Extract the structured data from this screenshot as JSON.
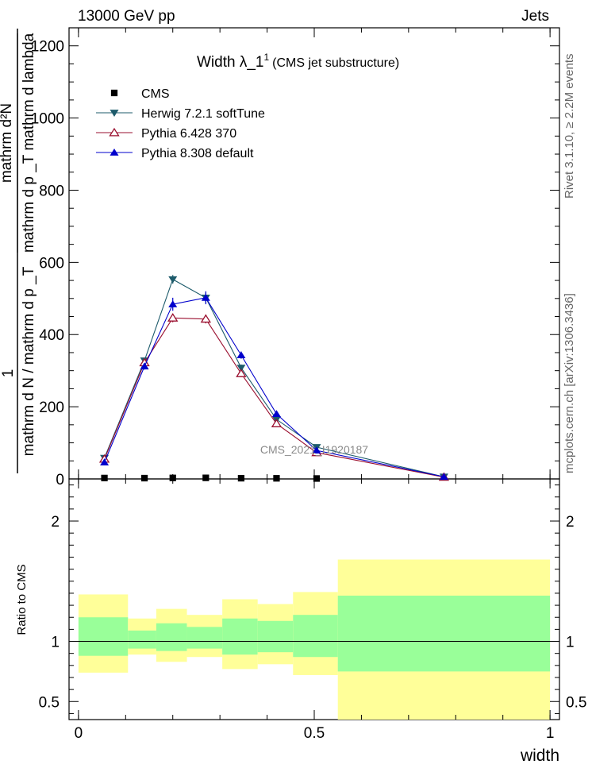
{
  "header": {
    "left": "13000 GeV pp",
    "right": "Jets"
  },
  "side": {
    "rivet": "Rivet 3.1.10, ≥ 2.2M events",
    "mcplots": "mcplots.cern.ch [arXiv:1306.3436]"
  },
  "watermark": "CMS_2021_I1920187",
  "chart_data": {
    "type": "line",
    "title": "Width λ_1",
    "title_sup": "1",
    "subtitle": "(CMS jet substructure)",
    "xlabel": "width",
    "ylabel_top": "1",
    "ylabel_fraction_top": "mathrm d²N",
    "ylabel_fraction_mid": "mathrm d p _T mathrm d lambda",
    "ylabel_bottom": "mathrm d N / mathrm d p _T",
    "ratio_ylabel": "Ratio to CMS",
    "xlim": [
      -0.02,
      1.02
    ],
    "ylim": [
      0,
      1250
    ],
    "ratio_ylim": [
      0.35,
      2.35
    ],
    "x_ticks": [
      "0",
      "0.5",
      "1"
    ],
    "y_ticks": [
      "0",
      "200",
      "400",
      "600",
      "800",
      "1000",
      "1200"
    ],
    "ratio_ticks": [
      "0.5",
      "1",
      "2"
    ],
    "legend_position": "top-left",
    "cms": {
      "name": "CMS",
      "color": "#000000",
      "x": [
        0.055,
        0.14,
        0.2,
        0.27,
        0.345,
        0.42,
        0.505
      ],
      "y": [
        2.5,
        2.2,
        2.8,
        3.0,
        2.0,
        1.7,
        1.2
      ]
    },
    "series": [
      {
        "name": "Herwig 7.2.1 softTune",
        "color": "#1d5b6b",
        "marker": "triangle-down",
        "x": [
          0.055,
          0.14,
          0.2,
          0.27,
          0.345,
          0.42,
          0.505,
          0.775
        ],
        "y": [
          58,
          328,
          553,
          502,
          308,
          165,
          88,
          6
        ],
        "err": [
          6,
          8,
          12,
          14,
          9,
          6,
          4,
          1
        ]
      },
      {
        "name": "Pythia 6.428 370",
        "color": "#9a0f2f",
        "marker": "triangle-open",
        "x": [
          0.055,
          0.14,
          0.2,
          0.27,
          0.345,
          0.42,
          0.505,
          0.775
        ],
        "y": [
          55,
          322,
          446,
          443,
          292,
          153,
          73,
          5
        ],
        "err": [
          5,
          8,
          12,
          12,
          10,
          6,
          4,
          1
        ]
      },
      {
        "name": "Pythia 8.308 default",
        "color": "#0000cc",
        "marker": "triangle-up",
        "x": [
          0.055,
          0.14,
          0.2,
          0.27,
          0.345,
          0.42,
          0.505,
          0.775
        ],
        "y": [
          46,
          312,
          484,
          502,
          343,
          180,
          79,
          6
        ],
        "err": [
          5,
          9,
          18,
          18,
          10,
          8,
          4,
          1
        ]
      }
    ],
    "ratio_bands": [
      {
        "x0": 0.0,
        "x1": 0.105,
        "green_lo": 0.88,
        "green_hi": 1.2,
        "yellow_lo": 0.74,
        "yellow_hi": 1.39
      },
      {
        "x0": 0.105,
        "x1": 0.165,
        "green_lo": 0.94,
        "green_hi": 1.09,
        "yellow_lo": 0.89,
        "yellow_hi": 1.19
      },
      {
        "x0": 0.165,
        "x1": 0.23,
        "green_lo": 0.92,
        "green_hi": 1.15,
        "yellow_lo": 0.83,
        "yellow_hi": 1.27
      },
      {
        "x0": 0.23,
        "x1": 0.305,
        "green_lo": 0.94,
        "green_hi": 1.12,
        "yellow_lo": 0.87,
        "yellow_hi": 1.22
      },
      {
        "x0": 0.305,
        "x1": 0.38,
        "green_lo": 0.89,
        "green_hi": 1.19,
        "yellow_lo": 0.77,
        "yellow_hi": 1.35
      },
      {
        "x0": 0.38,
        "x1": 0.455,
        "green_lo": 0.91,
        "green_hi": 1.17,
        "yellow_lo": 0.81,
        "yellow_hi": 1.31
      },
      {
        "x0": 0.455,
        "x1": 0.55,
        "green_lo": 0.87,
        "green_hi": 1.22,
        "yellow_lo": 0.72,
        "yellow_hi": 1.41
      },
      {
        "x0": 0.55,
        "x1": 1.0,
        "green_lo": 0.75,
        "green_hi": 1.38,
        "yellow_lo": 0.35,
        "yellow_hi": 1.68
      }
    ],
    "band_colors": {
      "green": "#99ff99",
      "yellow": "#ffff99"
    }
  }
}
